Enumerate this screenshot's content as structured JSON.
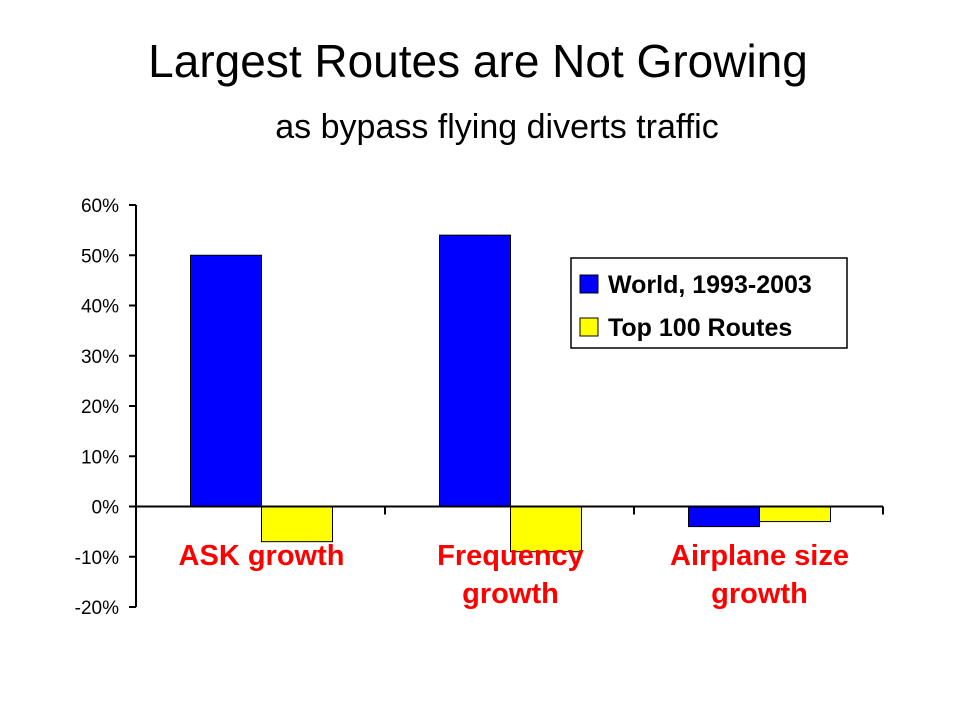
{
  "slide": {
    "title": "Largest Routes are Not Growing",
    "subtitle": "as bypass flying diverts traffic"
  },
  "colors": {
    "world": "#0000ff",
    "top100": "#ffff00",
    "category_label": "#ff0000",
    "axis": "#000000"
  },
  "chart_data": {
    "type": "bar",
    "categories": [
      [
        "ASK growth"
      ],
      [
        "Frequency",
        "growth"
      ],
      [
        "Airplane size",
        "growth"
      ]
    ],
    "series": [
      {
        "name": "World, 1993-2003",
        "values": [
          50,
          54,
          -4
        ]
      },
      {
        "name": "Top 100 Routes",
        "values": [
          -7,
          -9,
          -3
        ]
      }
    ],
    "y_ticks": [
      "60%",
      "50%",
      "40%",
      "30%",
      "20%",
      "10%",
      "0%",
      "-10%",
      "-20%"
    ],
    "ylim": [
      -20,
      60
    ],
    "y_unit": "%",
    "legend_position": "upper-right",
    "grid": false,
    "title": "",
    "xlabel": "",
    "ylabel": ""
  }
}
